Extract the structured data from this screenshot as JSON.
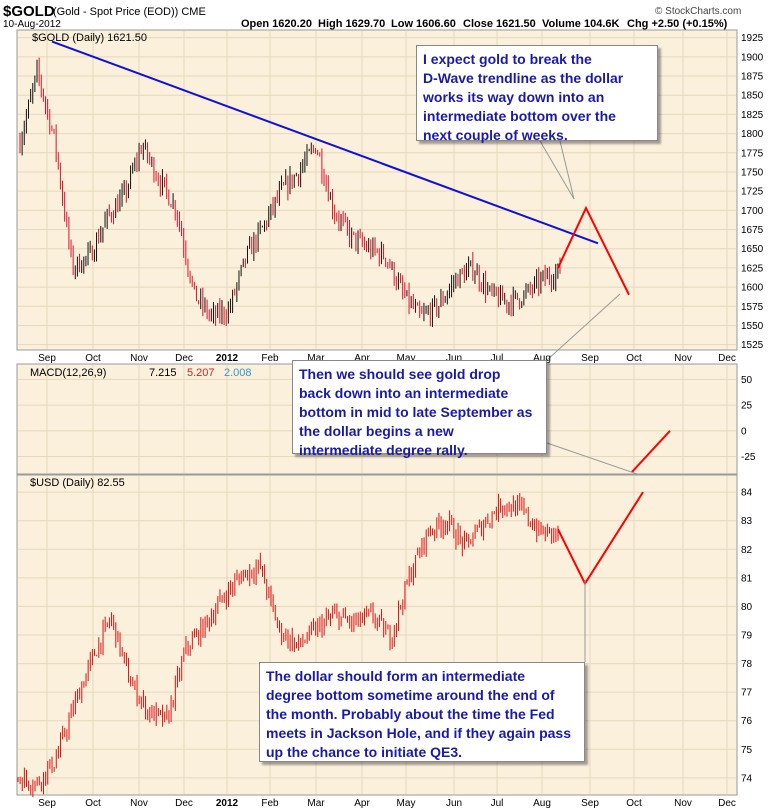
{
  "header": {
    "symbol": "$GOLD",
    "description": "(Gold - Spot Price (EOD)) CME",
    "date": "10-Aug-2012",
    "open": "Open 1620.20",
    "high": "High 1629.70",
    "low": "Low 1606.60",
    "close": "Close 1621.50",
    "volume": "Volume 104.6K",
    "change": "Chg +2.50 (+0.15%)",
    "logo": "© StockCharts.com"
  },
  "colors": {
    "panel_bg": "#faf0dc",
    "grid": "#e6d8bc",
    "up_bar": "#111111",
    "down_bar": "#e0102a",
    "usd_line": "#dd1111",
    "trendline": "#1010dd",
    "projection": "#ff0000",
    "macd": "#000000",
    "signal": "#cc2222",
    "histogram": "#3399cc",
    "callout_text": "#1a1aa8"
  },
  "chart_data": [
    {
      "type": "bar",
      "title": "$GOLD (Daily) 1621.50",
      "x": [
        "Aug 2011",
        "Sep",
        "Sep",
        "Sep",
        "Oct",
        "Oct",
        "Nov",
        "Nov",
        "Nov",
        "Dec",
        "Dec",
        "Dec",
        "2012",
        "Jan",
        "Jan",
        "Feb",
        "Feb",
        "Feb",
        "Mar",
        "Mar",
        "Apr",
        "Apr",
        "May",
        "May",
        "May",
        "Jun",
        "Jun",
        "Jul",
        "Jul",
        "Jul",
        "Aug",
        "Aug"
      ],
      "values": [
        1790,
        1880,
        1790,
        1625,
        1640,
        1690,
        1720,
        1785,
        1740,
        1700,
        1590,
        1560,
        1570,
        1640,
        1680,
        1725,
        1750,
        1785,
        1700,
        1665,
        1650,
        1640,
        1590,
        1560,
        1575,
        1610,
        1625,
        1590,
        1580,
        1590,
        1610,
        1621.5
      ],
      "x_ticks": [
        "Sep",
        "Oct",
        "Nov",
        "Dec",
        "2012",
        "Feb",
        "Mar",
        "Apr",
        "May",
        "Jun",
        "Jul",
        "Aug",
        "Sep",
        "Oct",
        "Nov",
        "Dec"
      ],
      "y_ticks": [
        "1925",
        "1900",
        "1875",
        "1850",
        "1825",
        "1800",
        "1775",
        "1750",
        "1725",
        "1700",
        "1675",
        "1650",
        "1625",
        "1600",
        "1575",
        "1550",
        "1525"
      ],
      "ylim": [
        1518,
        1935
      ],
      "trendline": {
        "from": [
          "Sep 2011",
          1920
        ],
        "to": [
          "Sep 2012",
          1657
        ]
      },
      "projection": {
        "points": [
          [
            "Aug 10",
            1625
          ],
          [
            "late Aug",
            1703
          ],
          [
            "mid Sep",
            1590
          ]
        ]
      }
    },
    {
      "type": "line",
      "title": "MACD(12,26,9)",
      "series": [
        {
          "name": "7.215",
          "values": [
            7.215
          ]
        },
        {
          "name": "5.207",
          "values": [
            5.207
          ]
        },
        {
          "name": "2.008",
          "values": [
            2.008
          ]
        }
      ],
      "y_ticks": [
        "50",
        "25",
        "0",
        "-25"
      ],
      "ylim": [
        -42,
        65
      ],
      "projection": {
        "points": [
          [
            "Sep",
            -40
          ],
          [
            "Oct",
            0
          ]
        ]
      }
    },
    {
      "type": "line",
      "title": "$USD (Daily) 82.55",
      "x": [
        "Aug 2011",
        "Aug",
        "Sep",
        "Sep",
        "Sep",
        "Oct",
        "Oct",
        "Oct",
        "Nov",
        "Nov",
        "Dec",
        "Dec",
        "Jan",
        "Jan",
        "Feb",
        "Feb",
        "Mar",
        "Mar",
        "Mar",
        "Apr",
        "Apr",
        "May",
        "May",
        "Jun",
        "Jun",
        "Jul",
        "Jul",
        "Jul",
        "Aug",
        "Aug"
      ],
      "values": [
        74.0,
        73.8,
        74.6,
        76.5,
        78.2,
        79.6,
        77.4,
        76.3,
        76.0,
        78.5,
        79.3,
        80.3,
        81.1,
        81.4,
        79.2,
        78.6,
        79.2,
        79.7,
        79.4,
        79.7,
        78.9,
        81.0,
        82.6,
        83.0,
        82.1,
        82.9,
        83.6,
        83.4,
        82.6,
        82.55
      ],
      "y_ticks": [
        "84",
        "83",
        "82",
        "81",
        "80",
        "79",
        "78",
        "77",
        "76",
        "75",
        "74"
      ],
      "ylim": [
        73.4,
        84.6
      ],
      "x_ticks": [
        "Sep",
        "Oct",
        "Nov",
        "Dec",
        "2012",
        "Feb",
        "Mar",
        "Apr",
        "May",
        "Jun",
        "Jul",
        "Aug",
        "Sep",
        "Oct",
        "Nov",
        "Dec"
      ],
      "projection": {
        "points": [
          [
            "Aug 10",
            82.7
          ],
          [
            "end of Aug",
            80.8
          ],
          [
            "mid Oct",
            84.0
          ]
        ]
      }
    }
  ],
  "annotations": {
    "gold": "I expect gold to break the\nD-Wave trendline as the dollar\nworks its way down into an\nintermediate bottom over the\nnext couple of weeks.",
    "macd": "Then we should see gold drop\nback down into an intermediate\nbottom in mid to late September as\nthe dollar begins a new\nintermediate degree rally.",
    "usd": "The dollar should form an intermediate\ndegree bottom sometime around the end of\nthe month. Probably about the time the Fed\nmeets in Jackson Hole, and if they again pass\nup the chance to initiate QE3."
  }
}
